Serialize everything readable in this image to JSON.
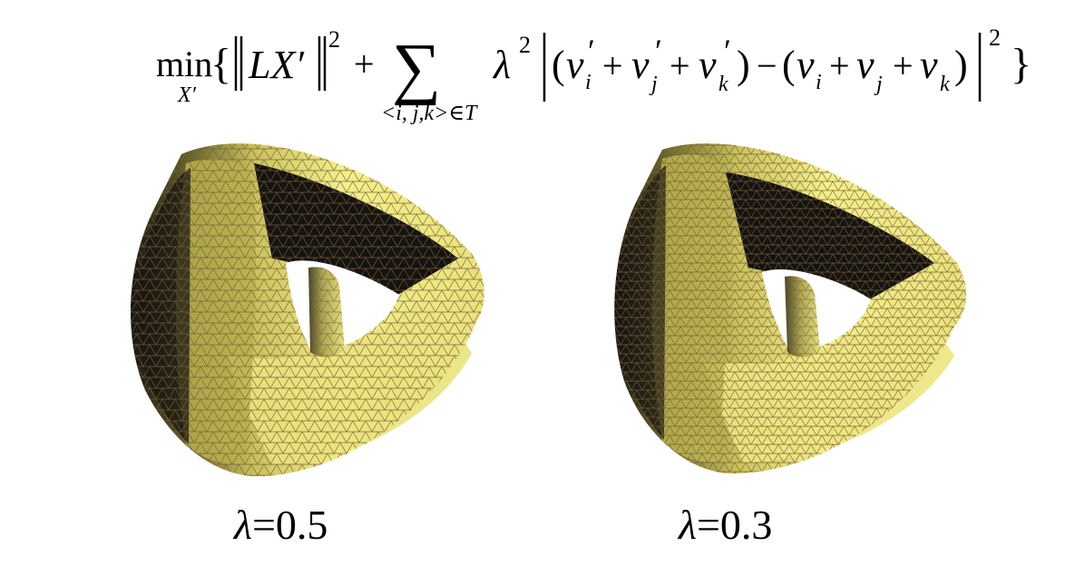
{
  "formula": {
    "operator": "min",
    "subscript_var": "X′",
    "open_brace": "{",
    "close_brace": "}",
    "norm_term": "LX′",
    "power": "2",
    "plus": "+",
    "sum_symbol": "∑",
    "sum_index": "<i, j,k>∈T",
    "lambda": "λ",
    "inner_expression": "(v_i′ + v_j′ + v_k′) − (v_i + v_j + v_k)"
  },
  "panels": [
    {
      "lambda_symbol": "λ",
      "equals_value": "=0.5"
    },
    {
      "lambda_symbol": "λ",
      "equals_value": "=0.3"
    }
  ],
  "colors": {
    "mesh_light": "#f3f08a",
    "mesh_mid": "#c9c25c",
    "mesh_dark": "#6d6a2c",
    "mesh_shadow": "#141410",
    "mesh_edges": "#7a5a3a"
  },
  "icons": {
    "mesh_left": "triangulated-torus-mesh",
    "mesh_right": "triangulated-torus-mesh"
  }
}
